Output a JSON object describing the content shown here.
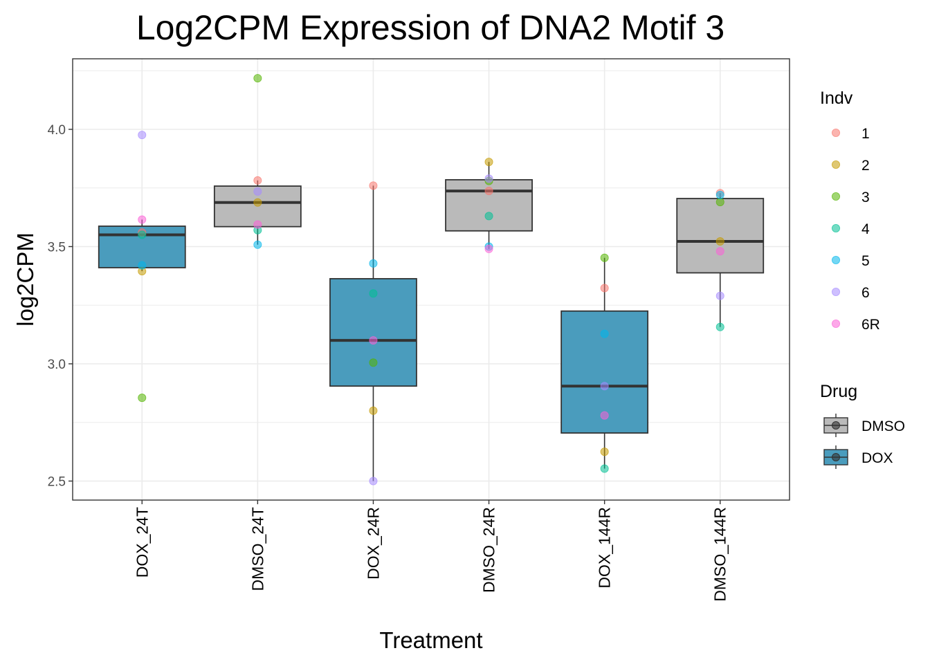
{
  "chart_data": {
    "type": "box",
    "title": "Log2CPM Expression of DNA2 Motif 3",
    "xlabel": "Treatment",
    "ylabel": "log2CPM",
    "ylim": [
      2.42,
      4.3
    ],
    "yticks": [
      2.5,
      3.0,
      3.5,
      4.0
    ],
    "ytick_labels": [
      "2.5",
      "3.0",
      "3.5",
      "4.0"
    ],
    "grid": true,
    "categories": [
      "DOX_24T",
      "DMSO_24T",
      "DOX_24R",
      "DMSO_24R",
      "DOX_144R",
      "DMSO_144R"
    ],
    "drug": [
      "DOX",
      "DMSO",
      "DOX",
      "DMSO",
      "DOX",
      "DMSO"
    ],
    "boxes": [
      {
        "q1": 3.41,
        "median": 3.55,
        "q3": 3.587,
        "whisker_low": 3.395,
        "whisker_high": 3.615
      },
      {
        "q1": 3.585,
        "median": 3.688,
        "q3": 3.758,
        "whisker_low": 3.508,
        "whisker_high": 3.782
      },
      {
        "q1": 2.905,
        "median": 3.1,
        "q3": 3.363,
        "whisker_low": 2.5,
        "whisker_high": 3.76
      },
      {
        "q1": 3.567,
        "median": 3.737,
        "q3": 3.785,
        "whisker_low": 3.49,
        "whisker_high": 3.861
      },
      {
        "q1": 2.705,
        "median": 2.905,
        "q3": 3.225,
        "whisker_low": 2.553,
        "whisker_high": 3.452
      },
      {
        "q1": 3.388,
        "median": 3.522,
        "q3": 3.705,
        "whisker_low": 3.157,
        "whisker_high": 3.728
      }
    ],
    "points": {
      "indv": [
        "1",
        "2",
        "3",
        "4",
        "5",
        "6",
        "6R"
      ],
      "values": [
        [
          3.56,
          3.395,
          2.855,
          3.55,
          3.42,
          3.976,
          3.615
        ],
        [
          3.782,
          3.688,
          4.218,
          3.57,
          3.508,
          3.735,
          3.594
        ],
        [
          3.76,
          2.8,
          3.005,
          3.3,
          3.428,
          2.5,
          3.1
        ],
        [
          3.737,
          3.861,
          3.78,
          3.63,
          3.5,
          3.79,
          3.49
        ],
        [
          3.323,
          2.625,
          3.452,
          2.553,
          3.128,
          2.905,
          2.78
        ],
        [
          3.728,
          3.522,
          3.69,
          3.157,
          3.72,
          3.29,
          3.48
        ]
      ]
    },
    "legend": {
      "placement": "right",
      "indv_title": "Indv",
      "indv_labels": [
        "1",
        "2",
        "3",
        "4",
        "5",
        "6",
        "6R"
      ],
      "indv_colors": [
        "#F8766D",
        "#C49A00",
        "#53B400",
        "#00C094",
        "#00B6EB",
        "#A58AFF",
        "#FB61D7"
      ],
      "drug_title": "Drug",
      "drug_labels": [
        "DMSO",
        "DOX"
      ],
      "drug_colors": [
        "#bababa",
        "#4a9cbd"
      ]
    }
  }
}
